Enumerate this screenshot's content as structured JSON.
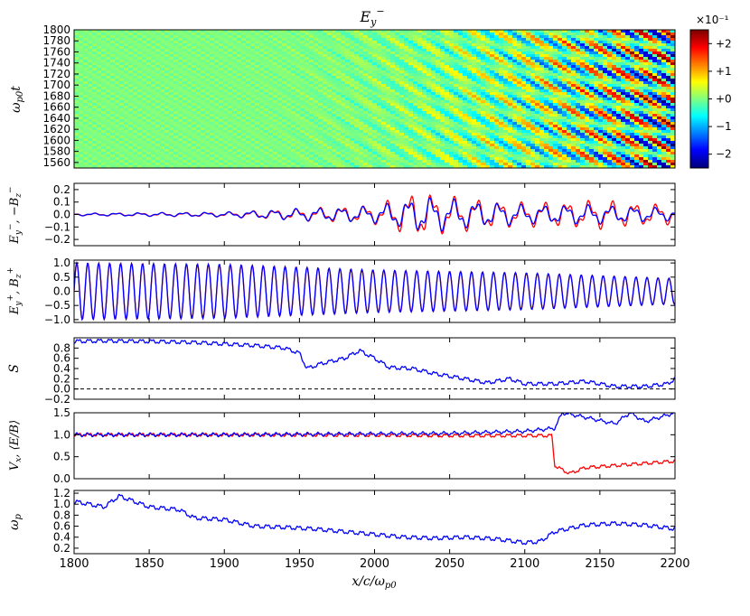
{
  "figure": {
    "title": "E_y^-",
    "xlabel": "x/c/ω_p0",
    "xticks": [
      "1800",
      "1850",
      "1900",
      "1950",
      "2000",
      "2050",
      "2100",
      "2150",
      "2200"
    ],
    "xlim": [
      1800,
      2200
    ]
  },
  "colors": {
    "series_red": "#ff0000",
    "series_blue": "#0000ff",
    "zero_line": "#000000"
  },
  "chart_data": [
    {
      "type": "heatmap",
      "title": "E_y^-",
      "ylabel": "ω_p0 t",
      "xlim": [
        1800,
        2200
      ],
      "ylim": [
        1550,
        1800
      ],
      "yticks": [
        "1800",
        "1780",
        "1760",
        "1740",
        "1720",
        "1700",
        "1680",
        "1660",
        "1640",
        "1620",
        "1600",
        "1580",
        "1560"
      ],
      "colorbar": {
        "multiplier": "×10⁻¹",
        "ticks": [
          "+2",
          "+1",
          "+0",
          "−1",
          "−2"
        ],
        "range": [
          -0.25,
          0.25
        ],
        "colormap": "jet"
      },
      "features": [
        {
          "description_region": "quiet",
          "x_range": [
            1800,
            1900
          ],
          "value": 0.0
        },
        {
          "description_region": "oblique wave fronts",
          "x_range": [
            1900,
            2200
          ],
          "amplitude_growth": "increasing with x"
        }
      ]
    },
    {
      "type": "line",
      "ylabel": "E_y^-, −B_z^-",
      "ylim": [
        -0.25,
        0.25
      ],
      "yticks": [
        "0.2",
        "0.1",
        "0.0",
        "−0.1",
        "−0.2"
      ],
      "series": [
        {
          "color": "red",
          "envelope": [
            [
              1800,
              0.01
            ],
            [
              1900,
              0.02
            ],
            [
              1950,
              0.05
            ],
            [
              2000,
              0.08
            ],
            [
              2030,
              0.2
            ],
            [
              2050,
              0.15
            ],
            [
              2100,
              0.1
            ],
            [
              2150,
              0.12
            ],
            [
              2200,
              0.08
            ]
          ]
        },
        {
          "color": "blue",
          "envelope": [
            [
              1800,
              0.01
            ],
            [
              1900,
              0.02
            ],
            [
              1950,
              0.05
            ],
            [
              2000,
              0.07
            ],
            [
              2030,
              0.15
            ],
            [
              2050,
              0.13
            ],
            [
              2100,
              0.08
            ],
            [
              2150,
              0.08
            ],
            [
              2200,
              0.05
            ]
          ]
        }
      ]
    },
    {
      "type": "line",
      "ylabel": "E_y^+, B_z^+",
      "ylim": [
        -1.1,
        1.1
      ],
      "yticks": [
        "1.0",
        "0.5",
        "0.0",
        "−0.5",
        "−1.0"
      ],
      "series": [
        {
          "color": "red",
          "amplitude": [
            [
              1800,
              1.0
            ],
            [
              1900,
              0.95
            ],
            [
              1950,
              0.85
            ],
            [
              2000,
              0.75
            ],
            [
              2050,
              0.7
            ],
            [
              2100,
              0.65
            ],
            [
              2150,
              0.55
            ],
            [
              2200,
              0.45
            ]
          ],
          "period_x": 7.3
        },
        {
          "color": "blue",
          "amplitude": [
            [
              1800,
              1.0
            ],
            [
              1900,
              0.95
            ],
            [
              1950,
              0.85
            ],
            [
              2000,
              0.75
            ],
            [
              2050,
              0.7
            ],
            [
              2100,
              0.65
            ],
            [
              2150,
              0.55
            ],
            [
              2200,
              0.45
            ]
          ],
          "period_x": 7.3
        }
      ]
    },
    {
      "type": "line",
      "ylabel": "S",
      "ylim": [
        -0.2,
        1.0
      ],
      "yticks": [
        "0.8",
        "0.6",
        "0.4",
        "0.2",
        "0.0",
        "−0.2"
      ],
      "series": [
        {
          "color": "blue",
          "points": [
            [
              1800,
              0.93
            ],
            [
              1820,
              0.94
            ],
            [
              1850,
              0.93
            ],
            [
              1880,
              0.91
            ],
            [
              1900,
              0.88
            ],
            [
              1920,
              0.85
            ],
            [
              1940,
              0.8
            ],
            [
              1950,
              0.7
            ],
            [
              1955,
              0.4
            ],
            [
              1965,
              0.5
            ],
            [
              1980,
              0.6
            ],
            [
              1990,
              0.75
            ],
            [
              2000,
              0.6
            ],
            [
              2010,
              0.42
            ],
            [
              2025,
              0.4
            ],
            [
              2040,
              0.3
            ],
            [
              2060,
              0.2
            ],
            [
              2075,
              0.12
            ],
            [
              2090,
              0.2
            ],
            [
              2100,
              0.1
            ],
            [
              2120,
              0.1
            ],
            [
              2140,
              0.15
            ],
            [
              2160,
              0.05
            ],
            [
              2180,
              0.05
            ],
            [
              2195,
              0.1
            ],
            [
              2200,
              0.2
            ]
          ]
        }
      ],
      "reference_line": 0.0
    },
    {
      "type": "line",
      "ylabel": "V_x, ⟨E/B⟩",
      "ylim": [
        0.0,
        1.5
      ],
      "yticks": [
        "1.5",
        "1.0",
        "0.5",
        "0.0"
      ],
      "series": [
        {
          "color": "red",
          "points": [
            [
              1800,
              1.0
            ],
            [
              1900,
              1.0
            ],
            [
              2000,
              0.99
            ],
            [
              2050,
              0.98
            ],
            [
              2100,
              0.98
            ],
            [
              2118,
              0.98
            ],
            [
              2120,
              0.3
            ],
            [
              2125,
              0.2
            ],
            [
              2130,
              0.12
            ],
            [
              2140,
              0.25
            ],
            [
              2160,
              0.3
            ],
            [
              2180,
              0.35
            ],
            [
              2200,
              0.4
            ]
          ]
        },
        {
          "color": "blue",
          "points": [
            [
              1800,
              1.0
            ],
            [
              1900,
              1.0
            ],
            [
              2000,
              1.02
            ],
            [
              2050,
              1.03
            ],
            [
              2100,
              1.08
            ],
            [
              2120,
              1.15
            ],
            [
              2125,
              1.5
            ],
            [
              2140,
              1.4
            ],
            [
              2160,
              1.25
            ],
            [
              2170,
              1.5
            ],
            [
              2180,
              1.3
            ],
            [
              2200,
              1.5
            ]
          ]
        }
      ]
    },
    {
      "type": "line",
      "ylabel": "ω_p",
      "ylim": [
        0.1,
        1.25
      ],
      "yticks": [
        "1.2",
        "1.0",
        "0.8",
        "0.6",
        "0.4",
        "0.2"
      ],
      "series": [
        {
          "color": "blue",
          "points": [
            [
              1800,
              1.05
            ],
            [
              1820,
              0.95
            ],
            [
              1830,
              1.15
            ],
            [
              1850,
              0.95
            ],
            [
              1870,
              0.9
            ],
            [
              1880,
              0.75
            ],
            [
              1900,
              0.72
            ],
            [
              1920,
              0.6
            ],
            [
              1940,
              0.58
            ],
            [
              1960,
              0.55
            ],
            [
              1980,
              0.5
            ],
            [
              2000,
              0.45
            ],
            [
              2020,
              0.4
            ],
            [
              2040,
              0.38
            ],
            [
              2060,
              0.4
            ],
            [
              2080,
              0.37
            ],
            [
              2100,
              0.3
            ],
            [
              2110,
              0.32
            ],
            [
              2120,
              0.5
            ],
            [
              2140,
              0.62
            ],
            [
              2160,
              0.65
            ],
            [
              2180,
              0.62
            ],
            [
              2200,
              0.55
            ]
          ]
        }
      ]
    }
  ]
}
